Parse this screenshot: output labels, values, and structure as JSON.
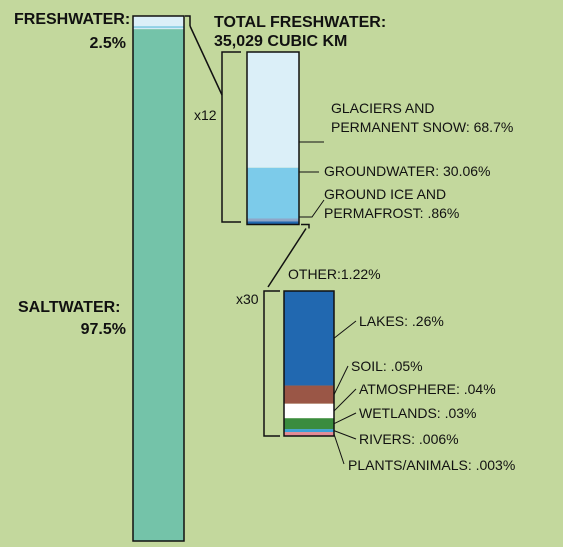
{
  "colors": {
    "background": "#c3d89d",
    "saltwater": "#74c3a9",
    "freshwater_cap": "#dbeff8",
    "freshwater_cap_line": "#8fd0e6",
    "glaciers": "#dbeff8",
    "groundwater": "#7ccbea",
    "ground_ice": "#8ea6c8",
    "other": "#2168b0",
    "lakes": "#2168b0",
    "soil": "#9a5646",
    "atmosphere": "#ffffff",
    "wetlands": "#3a8c3e",
    "rivers": "#3aa0d8",
    "plants_animals": "#e58a96",
    "outline": "#111111"
  },
  "labels": {
    "freshwater_title": "FRESHWATER:",
    "freshwater_pct": "2.5%",
    "saltwater_title": "SALTWATER:",
    "saltwater_pct": "97.5%",
    "total_title": "TOTAL FRESHWATER:",
    "total_value": "35,029 CUBIC KM",
    "x12": "x12",
    "x30": "x30"
  },
  "chart_data": [
    {
      "type": "bar",
      "stacked": true,
      "categories": [
        "Saltwater",
        "Freshwater"
      ],
      "labels": [
        "SALTWATER: 97.5%",
        "FRESHWATER: 2.5%"
      ],
      "values": [
        97.5,
        2.5
      ],
      "unit": "%"
    },
    {
      "type": "bar",
      "stacked": true,
      "title": "TOTAL FRESHWATER: 35,029 CUBIC KM",
      "magnification": "x12",
      "categories": [
        "Glaciers and permanent snow",
        "Groundwater",
        "Ground ice and permafrost",
        "Other"
      ],
      "labels": [
        "GLACIERS AND|PERMANENT SNOW: 68.7%",
        "GROUNDWATER: 30.06%",
        "GROUND ICE AND|PERMAFROST: .86%",
        ""
      ],
      "values": [
        68.7,
        30.06,
        0.86,
        1.22
      ],
      "unit": "%"
    },
    {
      "type": "bar",
      "stacked": true,
      "title": "OTHER:1.22%",
      "magnification": "x30",
      "categories": [
        "Lakes",
        "Soil",
        "Atmosphere",
        "Wetlands",
        "Rivers",
        "Plants/animals"
      ],
      "labels": [
        "LAKES: .26%",
        "SOIL: .05%",
        "ATMOSPHERE: .04%",
        "WETLANDS: .03%",
        "RIVERS: .006%",
        "PLANTS/ANIMALS: .003%"
      ],
      "values": [
        0.26,
        0.05,
        0.04,
        0.03,
        0.006,
        0.003
      ],
      "unit": "%"
    }
  ]
}
